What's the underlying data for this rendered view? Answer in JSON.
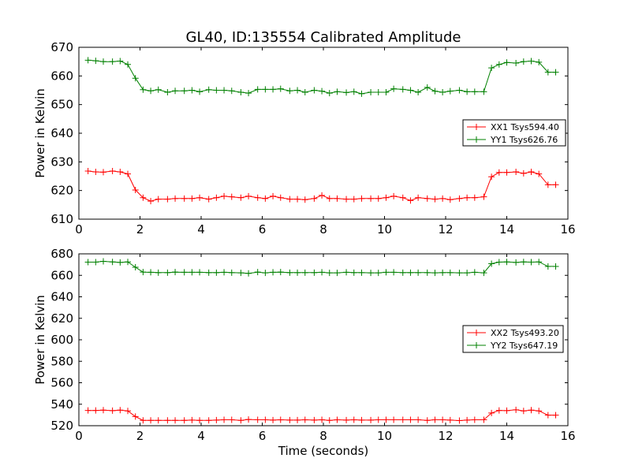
{
  "figure": {
    "title": "GL40, ID:135554 Calibrated Amplitude",
    "colors": {
      "red": "#ff0000",
      "green": "#008000"
    }
  },
  "chart_data": [
    {
      "type": "line",
      "title": "GL40, ID:135554 Calibrated Amplitude",
      "xlabel": "",
      "ylabel": "Power in Kelvin",
      "xlim": [
        0,
        16
      ],
      "ylim": [
        610,
        670
      ],
      "xticks": [
        0,
        2,
        4,
        6,
        8,
        10,
        12,
        14,
        16
      ],
      "yticks": [
        610,
        620,
        630,
        640,
        650,
        660,
        670
      ],
      "legend": "right",
      "grid": false,
      "x": [
        0.3,
        0.55,
        0.8,
        1.1,
        1.35,
        1.6,
        1.85,
        2.1,
        2.35,
        2.6,
        2.9,
        3.15,
        3.45,
        3.7,
        3.95,
        4.25,
        4.5,
        4.75,
        5.0,
        5.3,
        5.55,
        5.85,
        6.1,
        6.35,
        6.6,
        6.9,
        7.15,
        7.4,
        7.7,
        7.95,
        8.2,
        8.45,
        8.75,
        9.0,
        9.25,
        9.55,
        9.8,
        10.05,
        10.3,
        10.6,
        10.85,
        11.1,
        11.4,
        11.65,
        11.9,
        12.15,
        12.45,
        12.7,
        12.95,
        13.25,
        13.5,
        13.75,
        14.0,
        14.3,
        14.55,
        14.8,
        15.05,
        15.35,
        15.6
      ],
      "series": [
        {
          "name": "XX1 Tsys594.40",
          "color": "#ff0000",
          "values": [
            626.8,
            626.5,
            626.4,
            626.8,
            626.5,
            625.8,
            620.2,
            617.5,
            616.3,
            617.0,
            617.0,
            617.2,
            617.2,
            617.2,
            617.5,
            617.0,
            617.5,
            618.0,
            617.8,
            617.5,
            618.0,
            617.5,
            617.2,
            618.0,
            617.5,
            617.0,
            617.0,
            616.8,
            617.2,
            618.3,
            617.2,
            617.2,
            617.0,
            617.0,
            617.2,
            617.2,
            617.2,
            617.5,
            618.0,
            617.5,
            616.5,
            617.5,
            617.2,
            617.0,
            617.2,
            616.8,
            617.2,
            617.5,
            617.5,
            617.8,
            624.8,
            626.3,
            626.3,
            626.5,
            626.0,
            626.5,
            625.8,
            622.0,
            622.0
          ]
        },
        {
          "name": "YY1 Tsys626.76",
          "color": "#008000",
          "values": [
            665.5,
            665.3,
            665.0,
            665.0,
            665.2,
            664.0,
            659.2,
            655.2,
            654.8,
            655.2,
            654.3,
            654.8,
            654.8,
            655.0,
            654.5,
            655.2,
            655.0,
            655.0,
            654.8,
            654.3,
            654.0,
            655.3,
            655.3,
            655.3,
            655.5,
            654.8,
            655.0,
            654.3,
            655.0,
            654.7,
            654.0,
            654.5,
            654.2,
            654.5,
            653.8,
            654.3,
            654.3,
            654.3,
            655.5,
            655.3,
            655.0,
            654.3,
            656.0,
            654.7,
            654.3,
            654.7,
            655.0,
            654.5,
            654.5,
            654.5,
            662.8,
            664.0,
            664.7,
            664.5,
            665.0,
            665.2,
            664.8,
            661.3,
            661.3
          ]
        }
      ]
    },
    {
      "type": "line",
      "xlabel": "Time (seconds)",
      "ylabel": "Power in Kelvin",
      "xlim": [
        0,
        16
      ],
      "ylim": [
        520,
        680
      ],
      "xticks": [
        0,
        2,
        4,
        6,
        8,
        10,
        12,
        14,
        16
      ],
      "yticks": [
        520,
        540,
        560,
        580,
        600,
        620,
        640,
        660,
        680
      ],
      "legend": "right",
      "grid": false,
      "x": [
        0.3,
        0.55,
        0.8,
        1.1,
        1.35,
        1.6,
        1.85,
        2.1,
        2.35,
        2.6,
        2.9,
        3.15,
        3.45,
        3.7,
        3.95,
        4.25,
        4.5,
        4.75,
        5.0,
        5.3,
        5.55,
        5.85,
        6.1,
        6.35,
        6.6,
        6.9,
        7.15,
        7.4,
        7.7,
        7.95,
        8.2,
        8.45,
        8.75,
        9.0,
        9.25,
        9.55,
        9.8,
        10.05,
        10.3,
        10.6,
        10.85,
        11.1,
        11.4,
        11.65,
        11.9,
        12.15,
        12.45,
        12.7,
        12.95,
        13.25,
        13.5,
        13.75,
        14.0,
        14.3,
        14.55,
        14.8,
        15.05,
        15.35,
        15.6
      ],
      "series": [
        {
          "name": "XX2 Tsys493.20",
          "color": "#ff0000",
          "values": [
            534.2,
            534.2,
            534.5,
            534.0,
            534.5,
            533.8,
            528.5,
            525.0,
            525.0,
            525.0,
            525.0,
            525.0,
            525.0,
            525.2,
            525.0,
            525.0,
            525.2,
            525.5,
            525.5,
            525.0,
            525.8,
            525.5,
            525.5,
            525.2,
            525.5,
            525.2,
            525.2,
            525.5,
            525.2,
            525.5,
            525.0,
            525.5,
            525.2,
            525.5,
            525.2,
            525.2,
            525.5,
            525.5,
            525.5,
            525.5,
            525.5,
            525.5,
            525.0,
            525.5,
            525.5,
            525.2,
            524.8,
            525.2,
            525.5,
            525.5,
            531.8,
            534.2,
            534.0,
            534.8,
            533.8,
            534.5,
            533.8,
            529.8,
            529.8
          ]
        },
        {
          "name": "YY2 Tsys647.19",
          "color": "#008000",
          "values": [
            672.3,
            672.3,
            673.0,
            672.5,
            672.0,
            672.5,
            667.5,
            663.0,
            662.8,
            662.5,
            662.5,
            663.0,
            662.8,
            662.8,
            662.8,
            662.5,
            662.5,
            662.8,
            662.5,
            662.3,
            661.8,
            663.0,
            662.3,
            662.8,
            663.0,
            662.5,
            662.5,
            662.5,
            662.5,
            662.8,
            662.3,
            662.3,
            662.8,
            662.5,
            662.5,
            662.3,
            662.3,
            662.8,
            662.8,
            662.5,
            662.5,
            662.5,
            662.5,
            662.3,
            662.5,
            662.5,
            662.3,
            662.3,
            662.8,
            662.3,
            670.8,
            672.3,
            672.5,
            672.0,
            672.5,
            672.3,
            672.5,
            668.3,
            668.3
          ]
        }
      ]
    }
  ]
}
